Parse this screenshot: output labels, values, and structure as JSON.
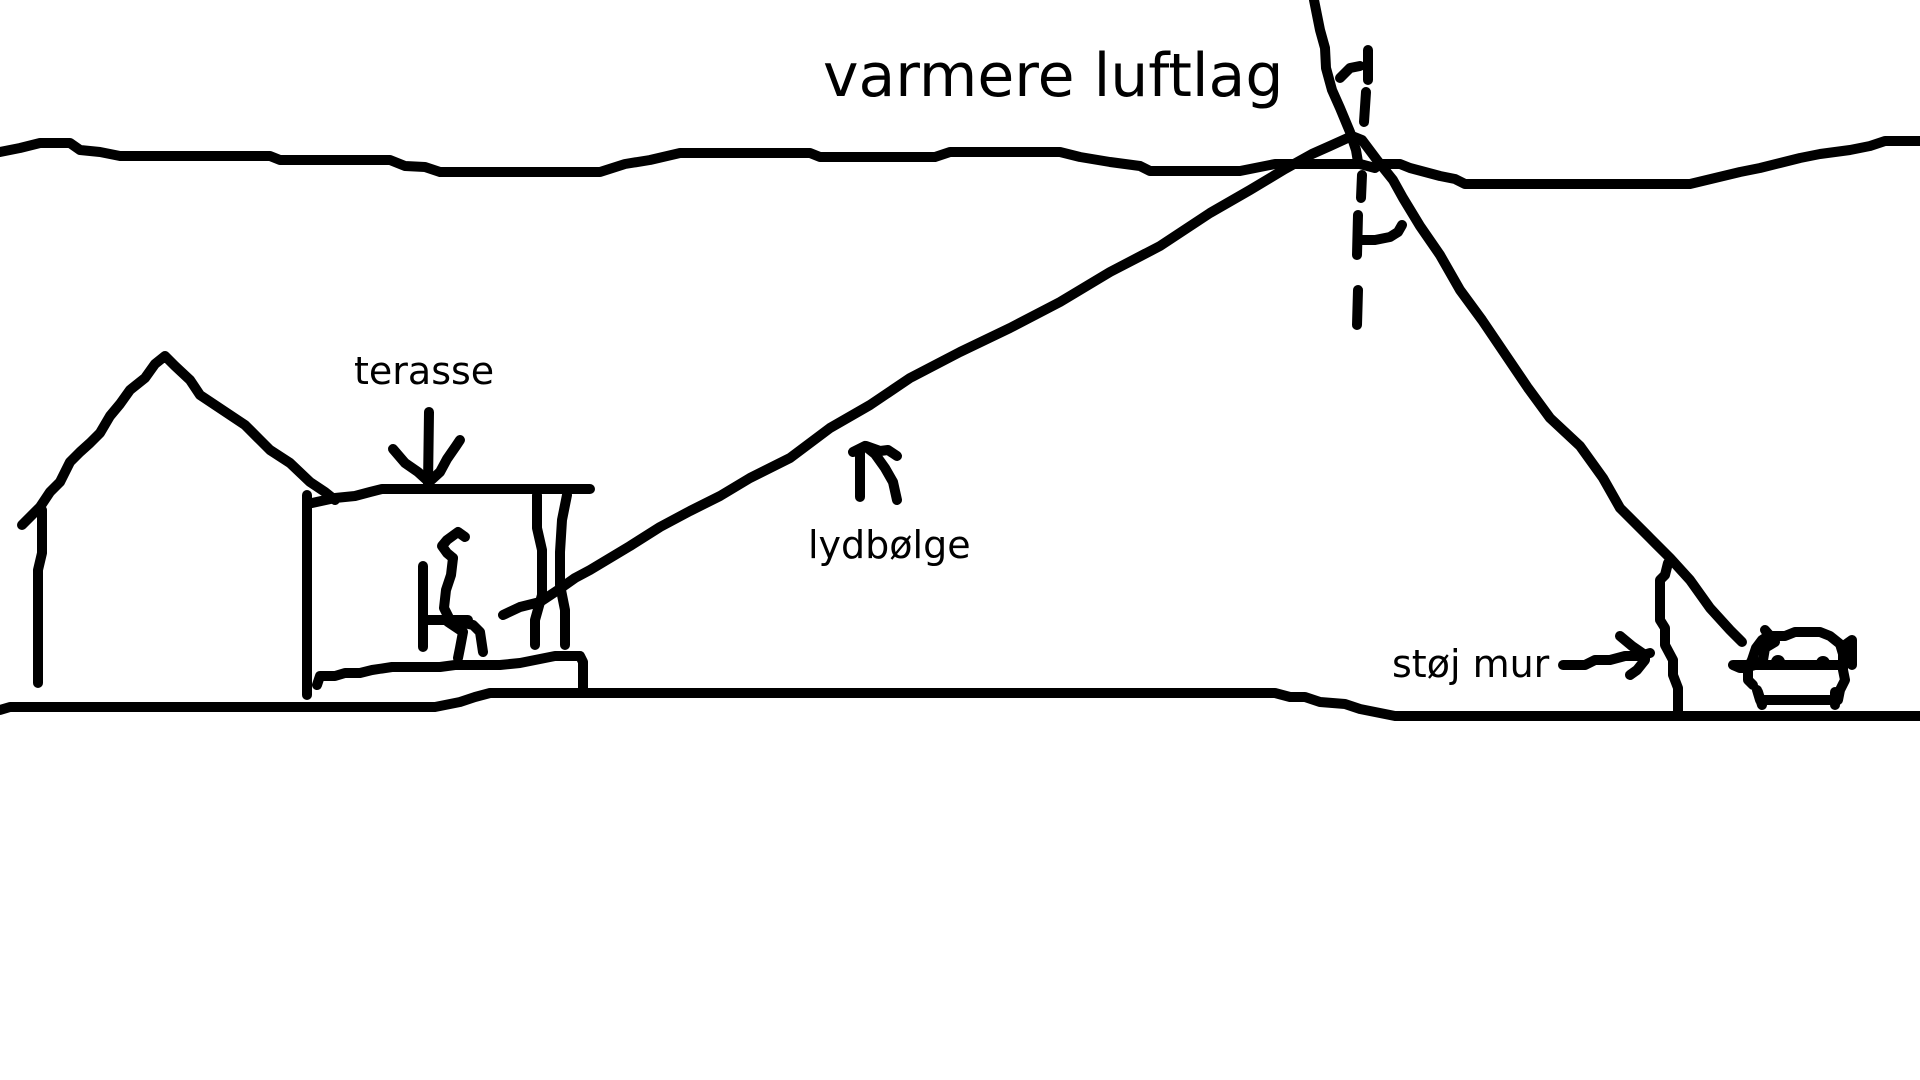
{
  "labels": {
    "warm_layer": "varmere luftlag",
    "terrace": "terasse",
    "sound_wave": "lydbølge",
    "noise_wall": "støj mur"
  },
  "icons": {
    "house": "house-icon",
    "person": "seated-person-icon",
    "car": "car-icon"
  },
  "colors": {
    "ink": "#000000",
    "background": "#ffffff"
  }
}
